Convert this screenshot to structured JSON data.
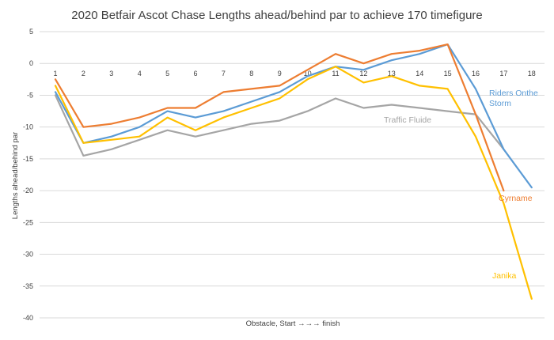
{
  "chart_data": {
    "type": "line",
    "title": "2020 Betfair Ascot Chase Lengths ahead/behind par to achieve 170 timefigure",
    "xlabel": "Obstacle, Start →→→ finish",
    "ylabel": "Lengths ahead/behind par",
    "categories": [
      "1",
      "2",
      "3",
      "4",
      "5",
      "6",
      "7",
      "8",
      "9",
      "10",
      "11",
      "12",
      "13",
      "14",
      "15",
      "16",
      "17",
      "18"
    ],
    "ylim": [
      -40,
      5
    ],
    "yticks": [
      5,
      0,
      -5,
      -10,
      -15,
      -20,
      -25,
      -30,
      -35,
      -40
    ],
    "ytick_labels": [
      "5",
      "0",
      "-5",
      "-10",
      "-15",
      "-20",
      "-25",
      "-30",
      "-35",
      "-40"
    ],
    "grid": "horizontal",
    "legend": "labels next to lines",
    "series": [
      {
        "name": "Traffic Fluide",
        "label_lines": [
          "Traffic Fluide"
        ],
        "color": "#a5a5a5",
        "values": [
          -5,
          -14.5,
          -13.5,
          -12,
          -10.5,
          -11.5,
          -10.5,
          -9.5,
          -9,
          -7.5,
          -5.5,
          -7,
          -6.5,
          -7,
          -7.5,
          -8,
          -13.5,
          null
        ]
      },
      {
        "name": "Riders Onthe Storm",
        "label_lines": [
          "Riders Onthe",
          "Storm"
        ],
        "color": "#5b9bd5",
        "values": [
          -4.5,
          -12.5,
          -11.5,
          -10,
          -7.5,
          -8.5,
          -7.5,
          -6,
          -4.5,
          -2,
          -0.5,
          -1,
          0.5,
          1.5,
          3,
          -4,
          -13.5,
          -19.5
        ]
      },
      {
        "name": "Janika",
        "label_lines": [
          "Janika"
        ],
        "color": "#ffc000",
        "values": [
          -3.5,
          -12.5,
          -12,
          -11.5,
          -8.5,
          -10.5,
          -8.5,
          -7,
          -5.5,
          -2.5,
          -0.5,
          -3,
          -2,
          -3.5,
          -4,
          -11.5,
          -22,
          -37
        ]
      },
      {
        "name": "Cyrname",
        "label_lines": [
          "Cyrname"
        ],
        "color": "#ed7d31",
        "values": [
          -2.5,
          -10,
          -9.5,
          -8.5,
          -7,
          -7,
          -4.5,
          -4,
          -3.5,
          -1,
          1.5,
          0,
          1.5,
          2,
          3,
          -8,
          -20,
          null
        ]
      }
    ]
  }
}
